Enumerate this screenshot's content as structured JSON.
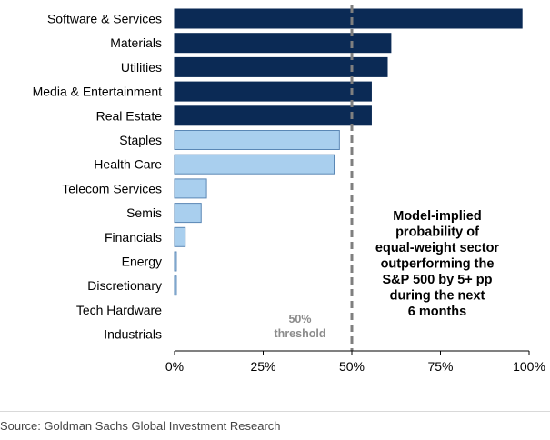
{
  "chart_data": {
    "type": "bar",
    "orientation": "horizontal",
    "categories": [
      "Software & Services",
      "Materials",
      "Utilities",
      "Media & Entertainment",
      "Real Estate",
      "Staples",
      "Health Care",
      "Telecom Services",
      "Semis",
      "Financials",
      "Energy",
      "Discretionary",
      "Tech Hardware",
      "Industrials"
    ],
    "values": [
      98,
      61,
      60,
      55.5,
      55.5,
      46.5,
      45,
      9,
      7.5,
      3,
      0.5,
      0.5,
      0,
      0
    ],
    "bar_colors": [
      "#0b2a55",
      "#0b2a55",
      "#0b2a55",
      "#0b2a55",
      "#0b2a55",
      "#a9cfee",
      "#a9cfee",
      "#a9cfee",
      "#a9cfee",
      "#a9cfee",
      "#a9cfee",
      "#a9cfee",
      "#a9cfee",
      "#a9cfee"
    ],
    "xlim": [
      0,
      100
    ],
    "xticks": [
      0,
      25,
      50,
      75,
      100
    ],
    "xtick_labels": [
      "0%",
      "25%",
      "50%",
      "75%",
      "100%"
    ],
    "threshold": {
      "value": 50,
      "label_lines": [
        "50%",
        "threshold"
      ],
      "color": "#7f7f7f"
    },
    "annotation_lines": [
      "Model-implied",
      "probability of",
      "equal-weight sector",
      "outperforming the",
      "S&P 500 by 5+ pp",
      "during the next",
      "6 months"
    ],
    "grid": false,
    "legend": "none"
  },
  "source": "Source: Goldman Sachs Global Investment Research"
}
